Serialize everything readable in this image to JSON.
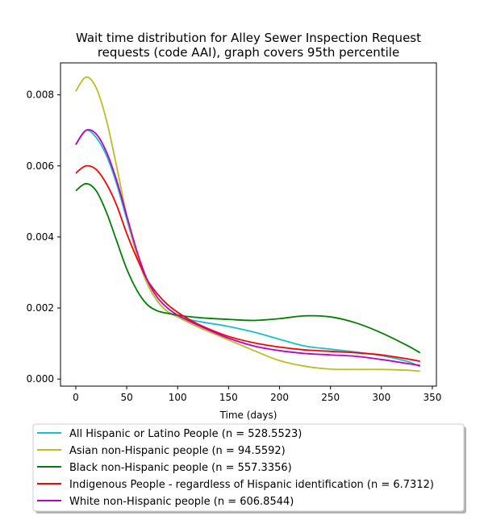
{
  "chart_data": {
    "type": "line",
    "title": [
      "Wait time distribution  for Alley Sewer Inspection Request",
      "requests (code AAI), graph covers 95th percentile"
    ],
    "xlabel": "Time (days)",
    "ylabel": "",
    "xlim": [
      -15,
      354
    ],
    "ylim": [
      -0.0002,
      0.0089
    ],
    "xticks": [
      0,
      50,
      100,
      150,
      200,
      250,
      300,
      350
    ],
    "xtick_labels": [
      "0",
      "50",
      "100",
      "150",
      "200",
      "250",
      "300",
      "350"
    ],
    "yticks": [
      0.0,
      0.002,
      0.004,
      0.006,
      0.008
    ],
    "ytick_labels": [
      "0.000",
      "0.002",
      "0.004",
      "0.006",
      "0.008"
    ],
    "grid": false,
    "legend_position": "below",
    "x": [
      0,
      10,
      20,
      30,
      40,
      50,
      60,
      70,
      80,
      90,
      100,
      110,
      125,
      150,
      175,
      200,
      225,
      250,
      275,
      300,
      325,
      338
    ],
    "series": [
      {
        "name": "All Hispanic or Latino People (n = 528.5523)",
        "color": "#17becf",
        "values": [
          0.0066,
          0.007,
          0.0068,
          0.0063,
          0.0055,
          0.0045,
          0.0035,
          0.0027,
          0.0022,
          0.0019,
          0.00178,
          0.00168,
          0.0016,
          0.00148,
          0.00132,
          0.00112,
          0.00093,
          0.00084,
          0.00076,
          0.00066,
          0.0005,
          0.00035
        ]
      },
      {
        "name": "Asian non-Hispanic people (n = 94.5592)",
        "color": "#bcbd22",
        "values": [
          0.0081,
          0.0085,
          0.0082,
          0.0073,
          0.006,
          0.0046,
          0.0035,
          0.0027,
          0.0022,
          0.0019,
          0.00175,
          0.0016,
          0.0014,
          0.0011,
          0.0008,
          0.00052,
          0.00036,
          0.00028,
          0.00027,
          0.00027,
          0.00025,
          0.00022
        ]
      },
      {
        "name": "Black non-Hispanic people (n = 557.3356)",
        "color": "#008000",
        "values": [
          0.0053,
          0.0055,
          0.0053,
          0.0047,
          0.0039,
          0.0031,
          0.0025,
          0.0021,
          0.00192,
          0.00185,
          0.0018,
          0.00176,
          0.00172,
          0.00168,
          0.00165,
          0.0017,
          0.00178,
          0.00175,
          0.00158,
          0.0013,
          0.00095,
          0.00074
        ]
      },
      {
        "name": "Indigenous People - regardless of Hispanic identification (n = 6.7312)",
        "color": "#ff0000",
        "values": [
          0.0058,
          0.006,
          0.0059,
          0.0055,
          0.0049,
          0.0041,
          0.0034,
          0.0028,
          0.0024,
          0.0021,
          0.00188,
          0.0017,
          0.00148,
          0.0012,
          0.00102,
          0.0009,
          0.00082,
          0.00078,
          0.00074,
          0.00068,
          0.00057,
          0.0005
        ]
      },
      {
        "name": "White non-Hispanic people (n = 606.8544)",
        "color": "#bf00bf",
        "values": [
          0.0066,
          0.007,
          0.0069,
          0.0064,
          0.0056,
          0.0046,
          0.0036,
          0.0028,
          0.0023,
          0.002,
          0.0018,
          0.00165,
          0.00145,
          0.00115,
          0.00093,
          0.0008,
          0.00072,
          0.00068,
          0.00064,
          0.00055,
          0.00044,
          0.00038
        ]
      }
    ]
  }
}
